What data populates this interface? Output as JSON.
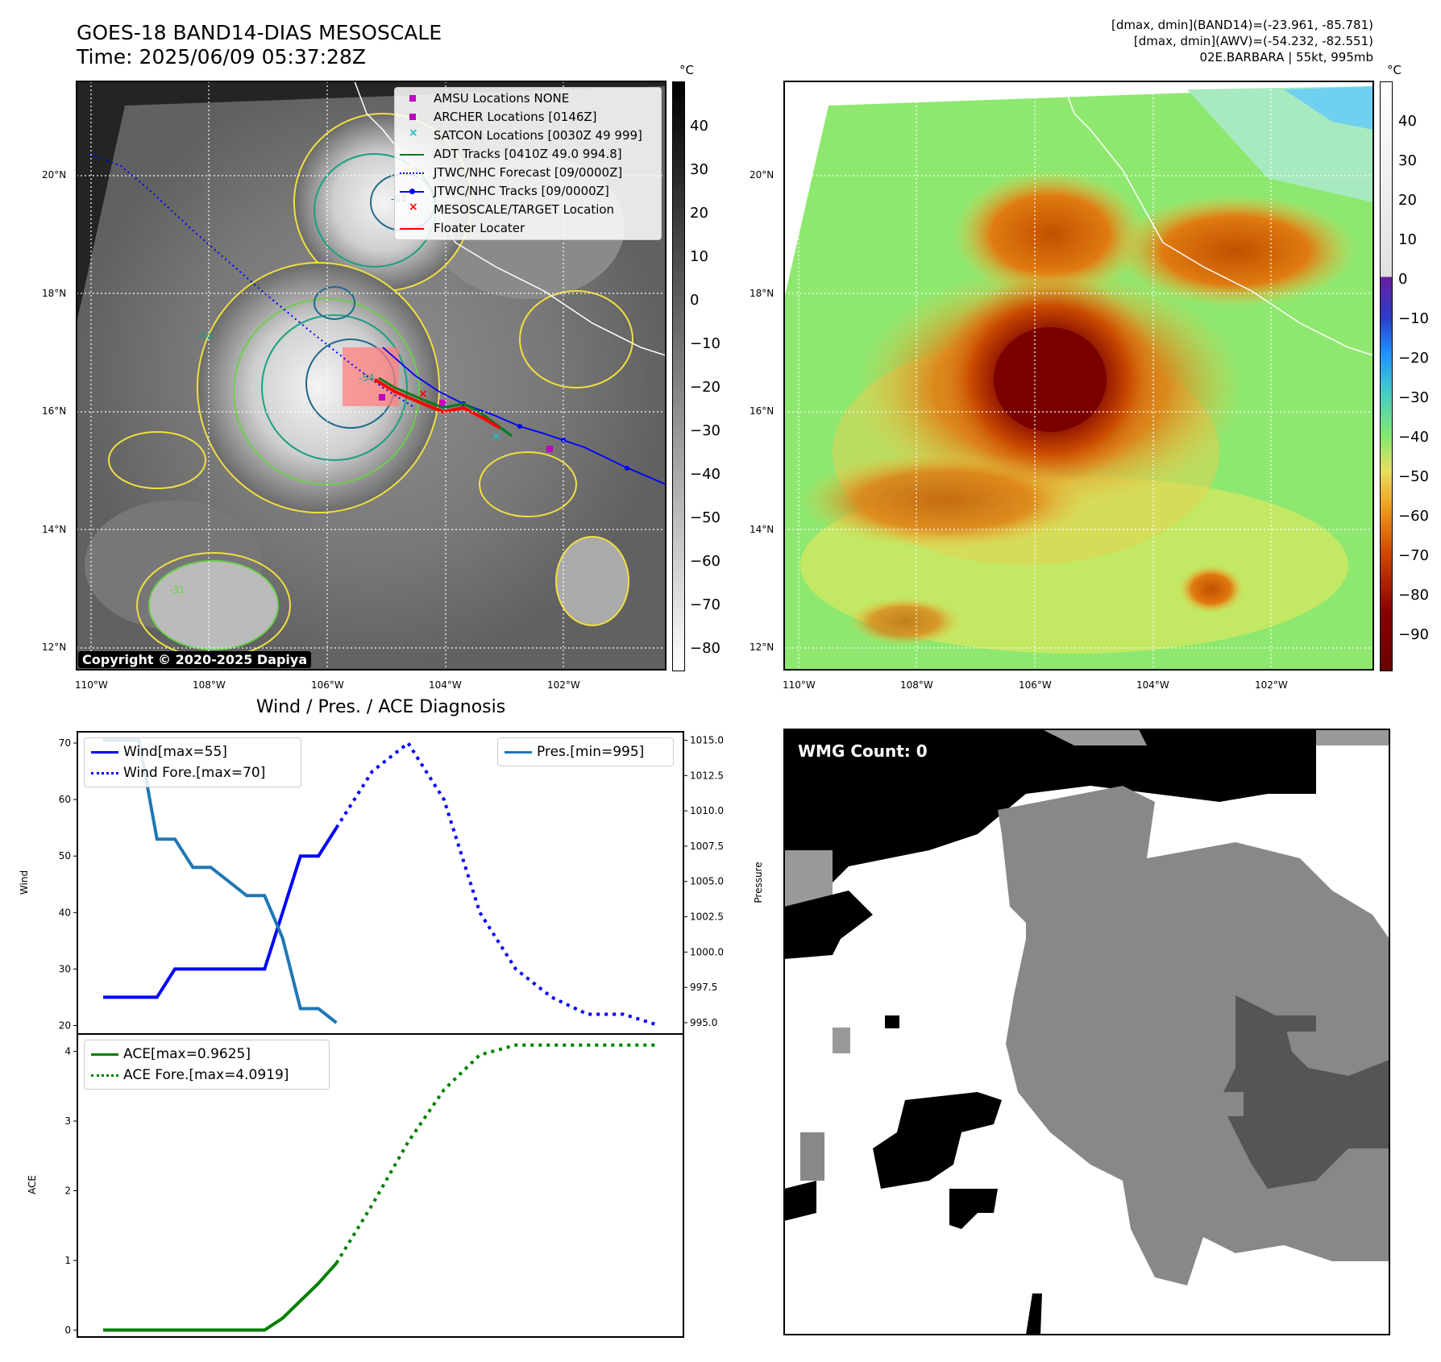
{
  "header": {
    "title_line1": "GOES-18 BAND14-DIAS MESOSCALE",
    "title_line2": "Time: 2025/06/09 05:37:28Z",
    "info_line1": "[dmax, dmin](BAND14)=(-23.961, -85.781)",
    "info_line2": "[dmax, dmin](AWV)=(-54.232, -82.551)",
    "info_line3": "02E.BARBARA | 55kt, 995mb"
  },
  "maps": {
    "lat_labels": [
      "20°N",
      "18°N",
      "16°N",
      "14°N",
      "12°N"
    ],
    "lon_labels": [
      "110°W",
      "108°W",
      "106°W",
      "104°W",
      "102°W"
    ],
    "copyright": "Copyright © 2020-2025 Dapiya",
    "contour_labels": [
      "-54",
      "-64",
      "-31"
    ],
    "left_colorbar": {
      "unit": "°C",
      "ticks": [
        "40",
        "30",
        "20",
        "10",
        "0",
        "−10",
        "−20",
        "−30",
        "−40",
        "−50",
        "−60",
        "−70",
        "−80"
      ]
    },
    "right_colorbar": {
      "unit": "°C",
      "ticks": [
        "40",
        "30",
        "20",
        "10",
        "0",
        "−10",
        "−20",
        "−30",
        "−40",
        "−50",
        "−60",
        "−70",
        "−80",
        "−90"
      ]
    },
    "legend": [
      {
        "label": "AMSU Locations NONE",
        "color": "#c000c0",
        "marker": "square"
      },
      {
        "label": "ARCHER Locations [0146Z]",
        "color": "#c000c0",
        "marker": "square"
      },
      {
        "label": "SATCON Locations [0030Z 49 999]",
        "color": "#20c0c0",
        "marker": "x"
      },
      {
        "label": "ADT Tracks [0410Z 49.0 994.8]",
        "color": "#007a1c",
        "marker": "line"
      },
      {
        "label": "JTWC/NHC Forecast [09/0000Z]",
        "color": "#0000ff",
        "marker": "dotted"
      },
      {
        "label": "JTWC/NHC Tracks [09/0000Z]",
        "color": "#0000ff",
        "marker": "line-dot"
      },
      {
        "label": "MESOSCALE/TARGET Location",
        "color": "#ff0000",
        "marker": "x"
      },
      {
        "label": "Floater Locater",
        "color": "#ff0000",
        "marker": "line"
      }
    ]
  },
  "diagnosis": {
    "title": "Wind / Pres. / ACE Diagnosis",
    "wind_ylabel": "Wind",
    "pres_ylabel": "Pressure",
    "ace_ylabel": "ACE",
    "legend_wind": "Wind[max=55]",
    "legend_wind_fore": "Wind Fore.[max=70]",
    "legend_pres": "Pres.[min=995]",
    "legend_ace": "ACE[max=0.9625]",
    "legend_ace_fore": "ACE Fore.[max=4.0919]"
  },
  "wmg": {
    "label": "WMG Count: 0"
  },
  "chart_data": [
    {
      "type": "line",
      "title": "Wind / Pres. / ACE Diagnosis",
      "ylabel": "Wind",
      "ylim": [
        18.5,
        72
      ],
      "x": [
        0,
        1,
        2,
        3,
        4,
        5,
        6,
        7,
        8,
        9,
        10,
        11,
        12,
        13,
        14
      ],
      "series": [
        {
          "name": "Wind[max=55]",
          "color": "#0000ff",
          "style": "solid",
          "x": [
            0,
            1,
            2,
            3,
            4,
            5,
            6,
            7,
            8,
            9,
            10,
            11,
            12,
            13
          ],
          "values": [
            25,
            25,
            25,
            25,
            30,
            30,
            30,
            30,
            30,
            30,
            40,
            50,
            50,
            55
          ]
        },
        {
          "name": "Wind Fore.[max=70]",
          "color": "#0000ff",
          "style": "dotted",
          "x": [
            13,
            15,
            17,
            19,
            21,
            23,
            25,
            27,
            29,
            31
          ],
          "values": [
            55,
            65,
            70,
            60,
            40,
            30,
            25,
            22,
            22,
            20
          ]
        }
      ],
      "yticks": [
        20,
        30,
        40,
        50,
        60,
        70
      ]
    },
    {
      "type": "line",
      "ylabel": "Pressure",
      "ylim": [
        994.2,
        1015.6
      ],
      "series": [
        {
          "name": "Pres.[min=995]",
          "color": "#1f77b4",
          "style": "solid",
          "x": [
            0,
            1,
            2,
            3,
            4,
            5,
            6,
            7,
            8,
            9,
            10,
            11,
            12,
            13
          ],
          "values": [
            1015,
            1015,
            1015,
            1008,
            1008,
            1006,
            1006,
            1005,
            1004,
            1004,
            1001,
            996,
            996,
            995
          ]
        }
      ],
      "yticks": [
        995.0,
        997.5,
        1000.0,
        1002.5,
        1005.0,
        1007.5,
        1010.0,
        1012.5,
        1015.0
      ]
    },
    {
      "type": "line",
      "ylabel": "ACE",
      "ylim": [
        -0.1,
        4.25
      ],
      "series": [
        {
          "name": "ACE[max=0.9625]",
          "color": "#008000",
          "style": "solid",
          "x": [
            0,
            1,
            2,
            3,
            4,
            5,
            6,
            7,
            8,
            9,
            10,
            11,
            12,
            13
          ],
          "values": [
            0,
            0,
            0,
            0,
            0,
            0,
            0,
            0,
            0,
            0,
            0.17,
            0.42,
            0.67,
            0.96
          ]
        },
        {
          "name": "ACE Fore.[max=4.0919]",
          "color": "#008000",
          "style": "dotted",
          "x": [
            13,
            15,
            17,
            19,
            21,
            23,
            25,
            27,
            29,
            31
          ],
          "values": [
            0.96,
            1.8,
            2.7,
            3.45,
            3.95,
            4.09,
            4.09,
            4.09,
            4.09,
            4.09
          ]
        }
      ],
      "yticks": [
        0,
        1,
        2,
        3,
        4
      ]
    }
  ]
}
